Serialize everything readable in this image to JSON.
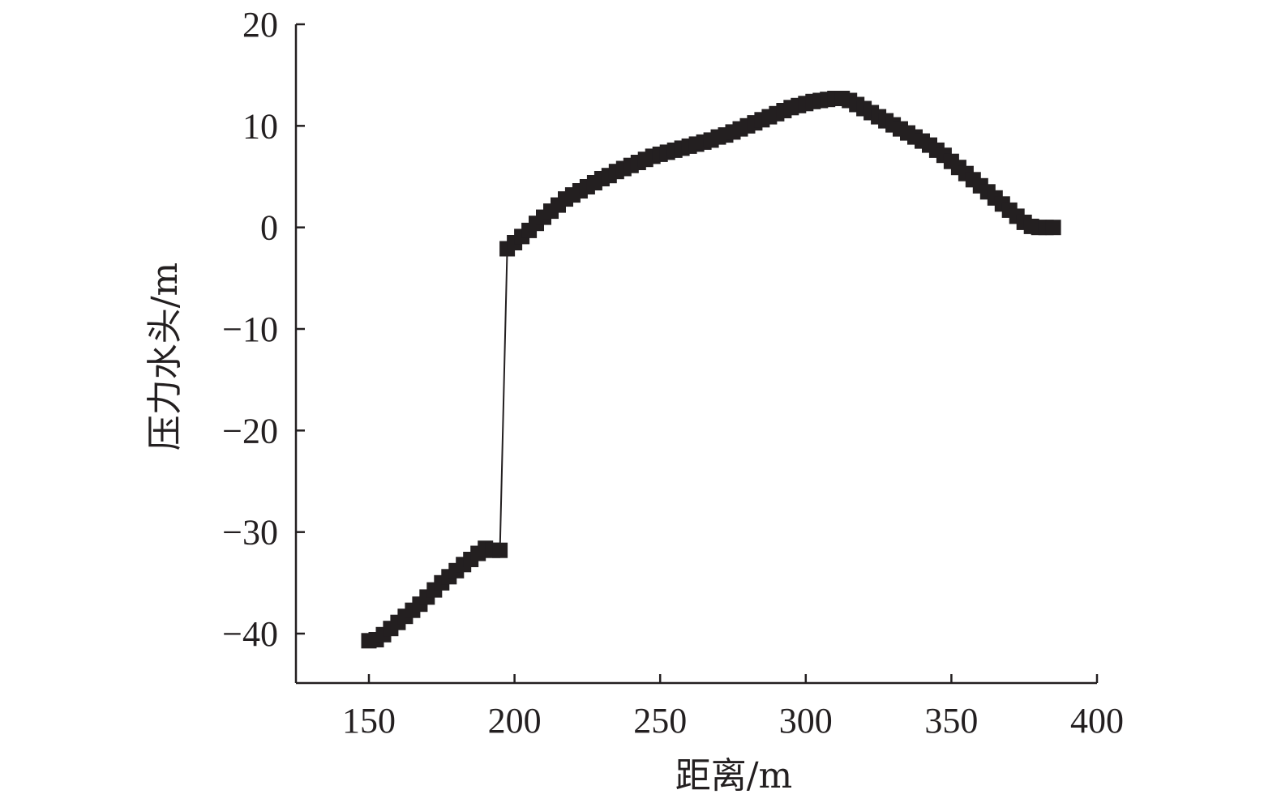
{
  "chart_data": {
    "type": "line",
    "title": "",
    "xlabel": "距离/m",
    "ylabel": "压力水头/m",
    "xlim": [
      125,
      400
    ],
    "ylim": [
      -45,
      20
    ],
    "xticks": [
      150,
      200,
      250,
      300,
      350,
      400
    ],
    "xtick_labels": [
      "150",
      "200",
      "250",
      "300",
      "350",
      "400"
    ],
    "yticks": [
      -40,
      -30,
      -20,
      -10,
      0,
      10,
      20
    ],
    "ytick_labels": [
      "−40",
      "−30",
      "−20",
      "−10",
      "0",
      "10",
      "20"
    ],
    "grid": false,
    "legend": "none",
    "marker": "square",
    "color": "#231f20",
    "series": [
      {
        "x": [
          150,
          152.5,
          155,
          157.5,
          160,
          162.5,
          165,
          167.5,
          170,
          172.5,
          175,
          177.5,
          180,
          182.5,
          185,
          187.5,
          190,
          192.5,
          195,
          197.5,
          200,
          202.5,
          205,
          207.5,
          210,
          212.5,
          215,
          217.5,
          220,
          222.5,
          225,
          227.5,
          230,
          232.5,
          235,
          237.5,
          240,
          242.5,
          245,
          247.5,
          250,
          252.5,
          255,
          257.5,
          260,
          262.5,
          265,
          267.5,
          270,
          272.5,
          275,
          277.5,
          280,
          282.5,
          285,
          287.5,
          290,
          292.5,
          295,
          297.5,
          300,
          302.5,
          305,
          307.5,
          310,
          312.5,
          315,
          317.5,
          320,
          322.5,
          325,
          327.5,
          330,
          332.5,
          335,
          337.5,
          340,
          342.5,
          345,
          347.5,
          350,
          352.5,
          355,
          357.5,
          360,
          362.5,
          365,
          367.5,
          370,
          372.5,
          375,
          377.5,
          380,
          382.5,
          385
        ],
        "y": [
          -40.7,
          -40.6,
          -40.1,
          -39.5,
          -38.9,
          -38.3,
          -37.7,
          -37.1,
          -36.4,
          -35.7,
          -35.0,
          -34.4,
          -33.8,
          -33.2,
          -32.7,
          -32.1,
          -31.6,
          -31.8,
          -31.8,
          -2.1,
          -1.5,
          -0.9,
          -0.3,
          0.4,
          1.0,
          1.6,
          2.2,
          2.8,
          3.2,
          3.6,
          4.0,
          4.4,
          4.8,
          5.1,
          5.5,
          5.8,
          6.1,
          6.4,
          6.7,
          7.0,
          7.2,
          7.4,
          7.6,
          7.8,
          8.0,
          8.2,
          8.4,
          8.6,
          8.9,
          9.1,
          9.4,
          9.7,
          10.0,
          10.3,
          10.6,
          10.9,
          11.2,
          11.5,
          11.8,
          12.0,
          12.2,
          12.4,
          12.5,
          12.6,
          12.7,
          12.7,
          12.5,
          12.1,
          11.7,
          11.3,
          10.9,
          10.5,
          10.1,
          9.7,
          9.3,
          8.9,
          8.5,
          8.1,
          7.6,
          7.1,
          6.5,
          5.9,
          5.3,
          4.7,
          4.1,
          3.5,
          2.9,
          2.3,
          1.7,
          1.1,
          0.5,
          0.1,
          0.0,
          0.0,
          0.0
        ]
      }
    ]
  }
}
